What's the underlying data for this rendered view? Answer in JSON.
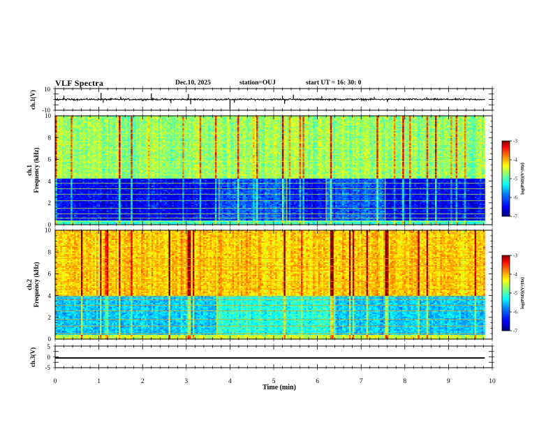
{
  "header": {
    "title": "VLF Spectra",
    "date": "Dec.10, 2025",
    "station": "station=OUJ",
    "start_ut": "start UT =   16: 30: 0"
  },
  "chart_data": [
    {
      "type": "line",
      "name": "waveform-ch1",
      "ylabel": "ch.1(V)",
      "ylim": [
        -10,
        10
      ],
      "y_ticks": [
        "10",
        "-10"
      ],
      "xlim": [
        0,
        10
      ],
      "trace_extent_x": [
        0,
        9.83
      ],
      "trace_mean": 0,
      "trace_band": 1.2,
      "spikes": [
        {
          "x": 0.2,
          "y": 3.5
        },
        {
          "x": 1.05,
          "y": 6.0
        },
        {
          "x": 1.1,
          "y": -3.0
        },
        {
          "x": 1.5,
          "y": 2.5
        },
        {
          "x": 2.2,
          "y": 5.5
        },
        {
          "x": 2.65,
          "y": -3.5
        },
        {
          "x": 3.05,
          "y": 5.0
        },
        {
          "x": 3.1,
          "y": -4.5
        },
        {
          "x": 4.0,
          "y": -9.0
        },
        {
          "x": 4.1,
          "y": -3.0
        },
        {
          "x": 5.2,
          "y": 3.5
        },
        {
          "x": 5.25,
          "y": -4.0
        },
        {
          "x": 5.45,
          "y": 4.5
        },
        {
          "x": 6.1,
          "y": 3.0
        },
        {
          "x": 7.3,
          "y": 2.5
        },
        {
          "x": 7.6,
          "y": -2.5
        },
        {
          "x": 8.5,
          "y": 2.0
        }
      ]
    },
    {
      "type": "heatmap",
      "name": "spectrogram-ch1",
      "ylabel_line1": "ch.1",
      "ylabel_line2": "Frequency (kHz)",
      "ylim": [
        0,
        10
      ],
      "y_ticks": [
        "0",
        "2",
        "4",
        "6",
        "8",
        "10"
      ],
      "xlim": [
        0,
        10
      ],
      "data_extent_x": [
        0,
        9.83
      ],
      "colorbar": {
        "label": "log(PSD)(V²/Hz)",
        "range": [
          -7,
          -3
        ],
        "ticks": [
          "-3",
          "-4",
          "-5",
          "-6",
          "-7"
        ]
      },
      "time_segments": [
        0,
        3.75,
        5.3,
        6.2,
        7.55,
        9.83
      ],
      "low_band_khz": [
        0,
        4.2
      ],
      "low_band_level": -6.4,
      "high_band_level": -4.9,
      "lines_khz": [
        0.3,
        0.6,
        1.0,
        1.5,
        2.2,
        2.8,
        3.3,
        3.8,
        4.6,
        5.2,
        5.8,
        7.0,
        7.6,
        8.4
      ]
    },
    {
      "type": "heatmap",
      "name": "spectrogram-ch2",
      "ylabel_line1": "ch.2",
      "ylabel_line2": "Frequency (kHz)",
      "ylim": [
        0,
        10
      ],
      "y_ticks": [
        "0",
        "2",
        "4",
        "6",
        "8",
        "10"
      ],
      "xlim": [
        0,
        10
      ],
      "data_extent_x": [
        0,
        9.83
      ],
      "colorbar": {
        "label": "log(PSD)(V²/Hz)",
        "range": [
          -7,
          -3
        ],
        "ticks": [
          "-3",
          "-4",
          "-5",
          "-6",
          "-7"
        ]
      },
      "time_segments": [
        0,
        3.7,
        6.4,
        9.83
      ],
      "low_band_khz": [
        0,
        4.0
      ],
      "low_band_level": -5.6,
      "high_band_level": -4.3,
      "lines_khz": [
        0.5,
        1.2,
        1.8,
        2.6,
        3.1,
        3.6,
        3.9,
        4.6,
        5.3,
        6.3,
        6.7,
        7.4
      ]
    },
    {
      "type": "line",
      "name": "waveform-ch3",
      "ylabel": "ch.3(V)",
      "ylim": [
        -5,
        5
      ],
      "y_ticks": [
        "5",
        "0",
        "-5"
      ],
      "xlim": [
        0,
        10
      ],
      "trace_extent_x": [
        0,
        9.83
      ],
      "trace_mean": -0.5,
      "trace_band": 0.6
    }
  ],
  "x_axis": {
    "label": "Time (min)",
    "ticks": [
      "0",
      "1",
      "2",
      "3",
      "4",
      "5",
      "6",
      "7",
      "8",
      "9",
      "10"
    ]
  },
  "colors": {
    "colormap": [
      "#00007f",
      "#0000ff",
      "#007fff",
      "#00ffff",
      "#7fff7f",
      "#ffff00",
      "#ff7f00",
      "#ff0000",
      "#7f0000"
    ],
    "trace": "#000000"
  }
}
